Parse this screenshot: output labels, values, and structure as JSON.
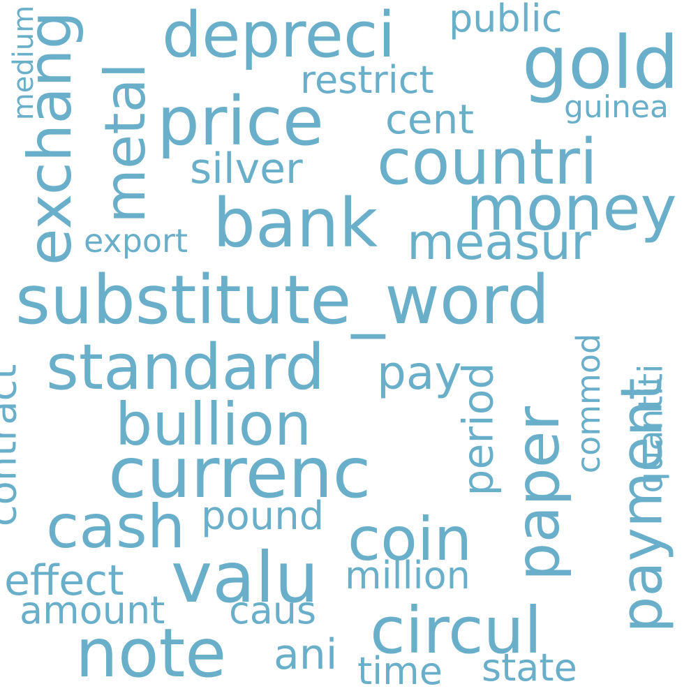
{
  "color": "#6aafca",
  "background": "#ffffff",
  "words": {
    "substitute_word": "substitute_word",
    "currenc": "currenc",
    "bank": "bank",
    "price": "price",
    "gold": "gold",
    "countri": "countri",
    "money": "money",
    "depreci": "depreci",
    "exchang": "exchang",
    "metal": "metal",
    "measur": "measur",
    "standard": "standard",
    "bullion": "bullion",
    "paper": "paper",
    "payment": "payment",
    "note": "note",
    "circul": "circul",
    "valu": "valu",
    "coin": "coin",
    "cash": "cash",
    "restrict": "restrict",
    "public": "public",
    "cent": "cent",
    "guinea": "guinea",
    "silver": "silver",
    "export": "export",
    "medium": "medium",
    "contract": "contract",
    "pay": "pay",
    "period": "period",
    "commod": "commod",
    "quantiti": "quantiti",
    "pound": "pound",
    "effect": "effect",
    "million": "million",
    "amount": "amount",
    "caus": "caus",
    "ani": "ani",
    "time": "time",
    "state": "state"
  }
}
